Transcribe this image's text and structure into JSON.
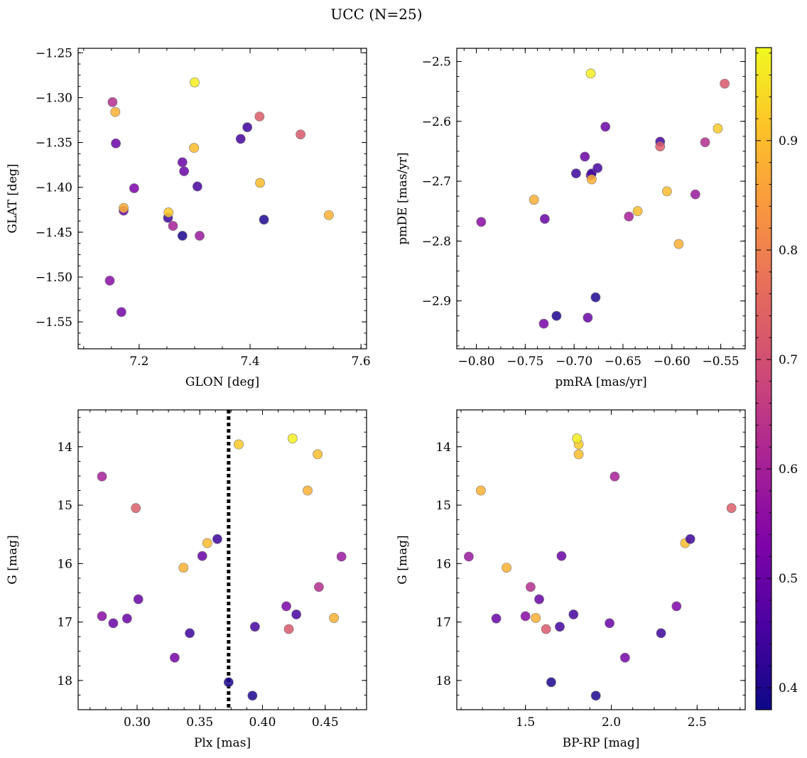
{
  "figure": {
    "title": "UCC (N=25)"
  },
  "colorbar": {
    "colormap": "plasma",
    "range": [
      0.38,
      0.985
    ],
    "ticks": [
      0.4,
      0.5,
      0.6,
      0.7,
      0.8,
      0.9
    ],
    "tick_labels": [
      "0.4",
      "0.5",
      "0.6",
      "0.7",
      "0.8",
      "0.9"
    ]
  },
  "members": {
    "glon": [
      7.168,
      7.147,
      7.278,
      7.425,
      7.158,
      7.278,
      7.191,
      7.261,
      7.172,
      7.281,
      7.418,
      7.542,
      7.309,
      7.152,
      7.305,
      7.299,
      7.252,
      7.383,
      7.395,
      7.157,
      7.417,
      7.491,
      7.172,
      7.253,
      7.3
    ],
    "glat": [
      -1.539,
      -1.504,
      -1.454,
      -1.436,
      -1.351,
      -1.372,
      -1.401,
      -1.443,
      -1.426,
      -1.382,
      -1.395,
      -1.431,
      -1.454,
      -1.305,
      -1.399,
      -1.356,
      -1.434,
      -1.346,
      -1.333,
      -1.316,
      -1.321,
      -1.341,
      -1.423,
      -1.428,
      -1.283
    ],
    "pmra": [
      -0.731,
      -0.795,
      -0.678,
      -0.718,
      -0.668,
      -0.686,
      -0.683,
      -0.644,
      -0.73,
      -0.689,
      -0.605,
      -0.593,
      -0.576,
      -0.566,
      -0.612,
      -0.635,
      -0.682,
      -0.676,
      -0.698,
      -0.741,
      -0.612,
      -0.546,
      -0.682,
      -0.553,
      -0.683
    ],
    "pmde": [
      -2.938,
      -2.768,
      -2.894,
      -2.925,
      -2.609,
      -2.928,
      -2.69,
      -2.759,
      -2.763,
      -2.659,
      -2.717,
      -2.805,
      -2.722,
      -2.635,
      -2.634,
      -2.75,
      -2.687,
      -2.678,
      -2.687,
      -2.731,
      -2.642,
      -2.537,
      -2.697,
      -2.612,
      -2.52
    ],
    "plx": [
      0.33,
      0.272,
      0.373,
      0.392,
      0.301,
      0.292,
      0.419,
      0.272,
      0.281,
      0.352,
      0.444,
      0.337,
      0.463,
      0.445,
      0.427,
      0.356,
      0.342,
      0.394,
      0.364,
      0.436,
      0.299,
      0.421,
      0.457,
      0.381,
      0.424
    ],
    "g": [
      17.61,
      16.9,
      18.03,
      18.26,
      16.61,
      16.94,
      16.73,
      14.51,
      17.02,
      15.87,
      14.13,
      16.07,
      15.88,
      16.4,
      16.87,
      15.65,
      17.19,
      17.08,
      15.58,
      14.75,
      15.05,
      17.12,
      16.93,
      13.96,
      13.86
    ],
    "bp_rp": [
      2.08,
      1.5,
      1.65,
      1.91,
      1.58,
      1.33,
      2.38,
      2.02,
      1.99,
      1.71,
      1.81,
      1.39,
      1.17,
      1.53,
      1.78,
      2.43,
      2.29,
      1.7,
      2.46,
      1.24,
      2.7,
      1.62,
      1.56,
      1.81,
      1.8
    ],
    "prob": [
      0.52,
      0.55,
      0.4,
      0.4,
      0.5,
      0.5,
      0.53,
      0.6,
      0.5,
      0.5,
      0.9,
      0.88,
      0.58,
      0.63,
      0.45,
      0.9,
      0.44,
      0.45,
      0.44,
      0.88,
      0.73,
      0.72,
      0.88,
      0.92,
      0.97
    ]
  },
  "chart_data": [
    {
      "type": "scatter",
      "xlabel": "GLON [deg]",
      "ylabel": "GLAT [deg]",
      "xlim": [
        7.09,
        7.61
      ],
      "ylim": [
        -1.58,
        -1.245
      ],
      "xticks": [
        7.2,
        7.4,
        7.6
      ],
      "xtick_labels": [
        "7.2",
        "7.4",
        "7.6"
      ],
      "yticks": [
        -1.55,
        -1.5,
        -1.45,
        -1.4,
        -1.35,
        -1.3,
        -1.25
      ],
      "ytick_labels": [
        "−1.55",
        "−1.50",
        "−1.45",
        "−1.40",
        "−1.35",
        "−1.30",
        "−1.25"
      ],
      "x_field": "glon",
      "y_field": "glat",
      "y_inverted": false,
      "vline": null
    },
    {
      "type": "scatter",
      "xlabel": "pmRA [mas/yr]",
      "ylabel": "pmDE [mas/yr]",
      "xlim": [
        -0.82,
        -0.525
      ],
      "ylim": [
        -2.98,
        -2.478
      ],
      "xticks": [
        -0.8,
        -0.75,
        -0.7,
        -0.65,
        -0.6,
        -0.55
      ],
      "xtick_labels": [
        "−0.80",
        "−0.75",
        "−0.70",
        "−0.65",
        "−0.60",
        "−0.55"
      ],
      "yticks": [
        -2.9,
        -2.8,
        -2.7,
        -2.6,
        -2.5
      ],
      "ytick_labels": [
        "−2.9",
        "−2.8",
        "−2.7",
        "−2.6",
        "−2.5"
      ],
      "x_field": "pmra",
      "y_field": "pmde",
      "y_inverted": false,
      "vline": null
    },
    {
      "type": "scatter",
      "xlabel": "Plx [mas]",
      "ylabel": "G [mag]",
      "xlim": [
        0.253,
        0.483
      ],
      "ylim": [
        13.37,
        18.5
      ],
      "xticks": [
        0.3,
        0.35,
        0.4,
        0.45
      ],
      "xtick_labels": [
        "0.30",
        "0.35",
        "0.40",
        "0.45"
      ],
      "yticks": [
        14,
        15,
        16,
        17,
        18
      ],
      "ytick_labels": [
        "14",
        "15",
        "16",
        "17",
        "18"
      ],
      "x_field": "plx",
      "y_field": "g",
      "y_inverted": true,
      "vline": 0.373
    },
    {
      "type": "scatter",
      "xlabel": "BP-RP [mag]",
      "ylabel": "G [mag]",
      "xlim": [
        1.1,
        2.78
      ],
      "ylim": [
        13.37,
        18.5
      ],
      "xticks": [
        1.5,
        2.0,
        2.5
      ],
      "xtick_labels": [
        "1.5",
        "2.0",
        "2.5"
      ],
      "yticks": [
        14,
        15,
        16,
        17,
        18
      ],
      "ytick_labels": [
        "14",
        "15",
        "16",
        "17",
        "18"
      ],
      "x_field": "bp_rp",
      "y_field": "g",
      "y_inverted": true,
      "vline": null
    }
  ]
}
